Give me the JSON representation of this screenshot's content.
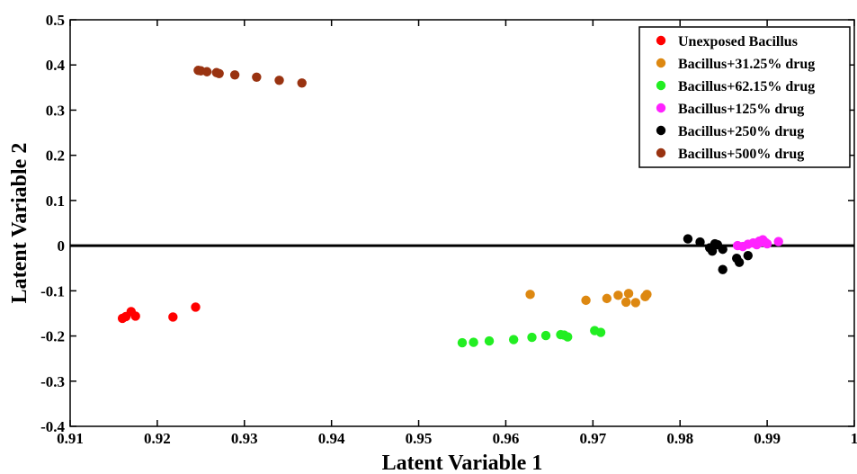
{
  "chart_data": {
    "type": "scatter",
    "title": "",
    "xlabel": "Latent Variable 1",
    "ylabel": "Latent Variable 2",
    "xlim": [
      0.91,
      1.0
    ],
    "ylim": [
      -0.4,
      0.5
    ],
    "x_ticks": [
      "0.91",
      "0.92",
      "0.93",
      "0.94",
      "0.95",
      "0.96",
      "0.97",
      "0.98",
      "0.99",
      "1"
    ],
    "y_ticks": [
      "-0.4",
      "-0.3",
      "-0.2",
      "-0.1",
      "0",
      "0.1",
      "0.2",
      "0.3",
      "0.4",
      "0.5"
    ],
    "reference_line_y": 0,
    "grid": false,
    "legend_position": "top-right",
    "series": [
      {
        "name": "Unexposed Bacillus",
        "color": "#ff0000",
        "points": [
          [
            0.916,
            -0.161
          ],
          [
            0.9164,
            -0.157
          ],
          [
            0.917,
            -0.146
          ],
          [
            0.9175,
            -0.156
          ],
          [
            0.9218,
            -0.158
          ],
          [
            0.9244,
            -0.136
          ]
        ]
      },
      {
        "name": "Bacillus+31.25% drug",
        "color": "#dd8811",
        "points": [
          [
            0.9628,
            -0.108
          ],
          [
            0.9692,
            -0.121
          ],
          [
            0.9716,
            -0.117
          ],
          [
            0.9729,
            -0.11
          ],
          [
            0.9738,
            -0.125
          ],
          [
            0.9741,
            -0.106
          ],
          [
            0.9749,
            -0.126
          ],
          [
            0.976,
            -0.113
          ],
          [
            0.9762,
            -0.108
          ]
        ]
      },
      {
        "name": "Bacillus+62.15% drug",
        "color": "#22ee22",
        "points": [
          [
            0.955,
            -0.215
          ],
          [
            0.9563,
            -0.214
          ],
          [
            0.9581,
            -0.211
          ],
          [
            0.9609,
            -0.208
          ],
          [
            0.963,
            -0.203
          ],
          [
            0.9646,
            -0.199
          ],
          [
            0.9663,
            -0.197
          ],
          [
            0.9667,
            -0.198
          ],
          [
            0.9671,
            -0.202
          ],
          [
            0.9702,
            -0.188
          ],
          [
            0.9709,
            -0.192
          ]
        ]
      },
      {
        "name": "Bacillus+125% drug",
        "color": "#ff22ff",
        "points": [
          [
            0.9866,
            0.0
          ],
          [
            0.9872,
            -0.002
          ],
          [
            0.9878,
            0.003
          ],
          [
            0.9884,
            0.006
          ],
          [
            0.9888,
            0.002
          ],
          [
            0.9891,
            0.01
          ],
          [
            0.9893,
            0.008
          ],
          [
            0.9895,
            0.013
          ],
          [
            0.9898,
            0.007
          ],
          [
            0.99,
            0.004
          ],
          [
            0.9913,
            0.009
          ]
        ]
      },
      {
        "name": "Bacillus+250% drug",
        "color": "#000000",
        "points": [
          [
            0.9809,
            0.015
          ],
          [
            0.9823,
            0.008
          ],
          [
            0.9834,
            -0.005
          ],
          [
            0.9837,
            -0.012
          ],
          [
            0.984,
            0.004
          ],
          [
            0.9843,
            0.002
          ],
          [
            0.9849,
            -0.008
          ],
          [
            0.9849,
            -0.053
          ],
          [
            0.9865,
            -0.028
          ],
          [
            0.9868,
            -0.037
          ],
          [
            0.9878,
            -0.022
          ]
        ]
      },
      {
        "name": "Bacillus+500% drug",
        "color": "#993311",
        "points": [
          [
            0.9247,
            0.388
          ],
          [
            0.925,
            0.387
          ],
          [
            0.9257,
            0.385
          ],
          [
            0.9268,
            0.383
          ],
          [
            0.9271,
            0.381
          ],
          [
            0.9289,
            0.378
          ],
          [
            0.9314,
            0.373
          ],
          [
            0.934,
            0.366
          ],
          [
            0.9366,
            0.36
          ]
        ]
      }
    ]
  }
}
